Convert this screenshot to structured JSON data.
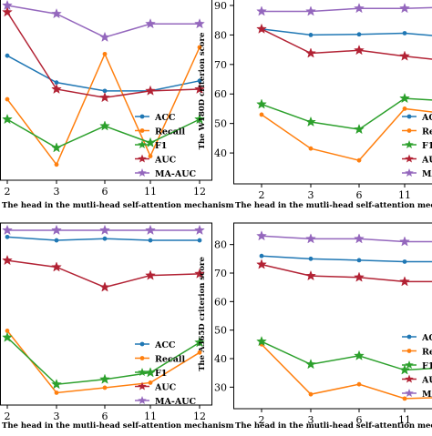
{
  "chart_data": [
    {
      "type": "line",
      "x": [
        "2",
        "3",
        "6",
        "11",
        "12"
      ],
      "xlabel": "The head in the mutli-head self-attention mechanism",
      "ylabel": "",
      "ylim": [
        0,
        100
      ],
      "yticks": [],
      "grid": false,
      "legend": "bottom-right",
      "series": [
        {
          "name": "ACC",
          "color": "#1f77b4",
          "marker": "point",
          "values": [
            70,
            54,
            49,
            49,
            55
          ]
        },
        {
          "name": "Recall",
          "color": "#ff7f0e",
          "marker": "point",
          "values": [
            44,
            5,
            71,
            10,
            75
          ]
        },
        {
          "name": "F1",
          "color": "#2ca02c",
          "marker": "star",
          "values": [
            32,
            15,
            28,
            18,
            32
          ]
        },
        {
          "name": "AUC",
          "color": "#b22234",
          "marker": "star",
          "values": [
            96,
            50,
            45,
            49,
            50
          ]
        },
        {
          "name": "MA-AUC",
          "color": "#9467bd",
          "marker": "star",
          "values": [
            100,
            95,
            81,
            89,
            89
          ]
        }
      ]
    },
    {
      "type": "line",
      "x": [
        "2",
        "3",
        "6",
        "11",
        "12"
      ],
      "xlabel": "The head in the mutli-head self-attention mec",
      "ylabel": "The W180D criterion score",
      "ylim": [
        32,
        90
      ],
      "yticks": [
        40,
        50,
        60,
        70,
        80,
        90
      ],
      "grid": false,
      "legend": "bottom-right",
      "series": [
        {
          "name": "ACC",
          "color": "#1f77b4",
          "marker": "point",
          "values": [
            82,
            80,
            80.2,
            80.6,
            79.2
          ]
        },
        {
          "name": "Recall",
          "color": "#ff7f0e",
          "marker": "point",
          "values": [
            53,
            41.5,
            37.5,
            55,
            53
          ]
        },
        {
          "name": "F1",
          "color": "#2ca02c",
          "marker": "star",
          "values": [
            56.5,
            50.5,
            48,
            58.5,
            57.5
          ]
        },
        {
          "name": "AUC",
          "color": "#b22234",
          "marker": "star",
          "values": [
            82,
            73.8,
            74.8,
            72.8,
            71
          ]
        },
        {
          "name": "MA-AUC",
          "color": "#9467bd",
          "marker": "star",
          "values": [
            88,
            88,
            89,
            89,
            89.5
          ]
        }
      ]
    },
    {
      "type": "line",
      "x": [
        "2",
        "3",
        "6",
        "11",
        "12"
      ],
      "xlabel": "The head in the mutli-head self-attention mechanism",
      "ylabel": "",
      "ylim": [
        0,
        100
      ],
      "yticks": [],
      "grid": false,
      "legend": "bottom-right",
      "series": [
        {
          "name": "ACC",
          "color": "#1f77b4",
          "marker": "point",
          "values": [
            96,
            94,
            95,
            94,
            94
          ]
        },
        {
          "name": "Recall",
          "color": "#ff7f0e",
          "marker": "point",
          "values": [
            40,
            3,
            6,
            9,
            27
          ]
        },
        {
          "name": "F1",
          "color": "#2ca02c",
          "marker": "star",
          "values": [
            36,
            8,
            11,
            15,
            33
          ]
        },
        {
          "name": "AUC",
          "color": "#b22234",
          "marker": "star",
          "values": [
            82,
            78,
            66,
            73,
            74
          ]
        },
        {
          "name": "MA-AUC",
          "color": "#9467bd",
          "marker": "star",
          "values": [
            100,
            100,
            100,
            100,
            100
          ]
        }
      ]
    },
    {
      "type": "line",
      "x": [
        "2",
        "3",
        "6",
        "11",
        "12"
      ],
      "xlabel": "The head in the mutli-head self-attention mec",
      "ylabel": "The A365D criterion score",
      "ylim": [
        25,
        85
      ],
      "yticks": [
        30,
        40,
        50,
        60,
        70,
        80
      ],
      "grid": false,
      "legend": "bottom-right",
      "series": [
        {
          "name": "ACC",
          "color": "#1f77b4",
          "marker": "point",
          "values": [
            76,
            75,
            74.5,
            74,
            74
          ]
        },
        {
          "name": "Recall",
          "color": "#ff7f0e",
          "marker": "point",
          "values": [
            45,
            27.5,
            31,
            26,
            26.5
          ]
        },
        {
          "name": "F1",
          "color": "#2ca02c",
          "marker": "star",
          "values": [
            46,
            38,
            41,
            36,
            37
          ]
        },
        {
          "name": "AUC",
          "color": "#b22234",
          "marker": "star",
          "values": [
            73,
            69,
            68.5,
            67,
            67
          ]
        },
        {
          "name": "MA-AUC",
          "color": "#9467bd",
          "marker": "star",
          "values": [
            83,
            82,
            82,
            81,
            81
          ]
        }
      ]
    }
  ]
}
